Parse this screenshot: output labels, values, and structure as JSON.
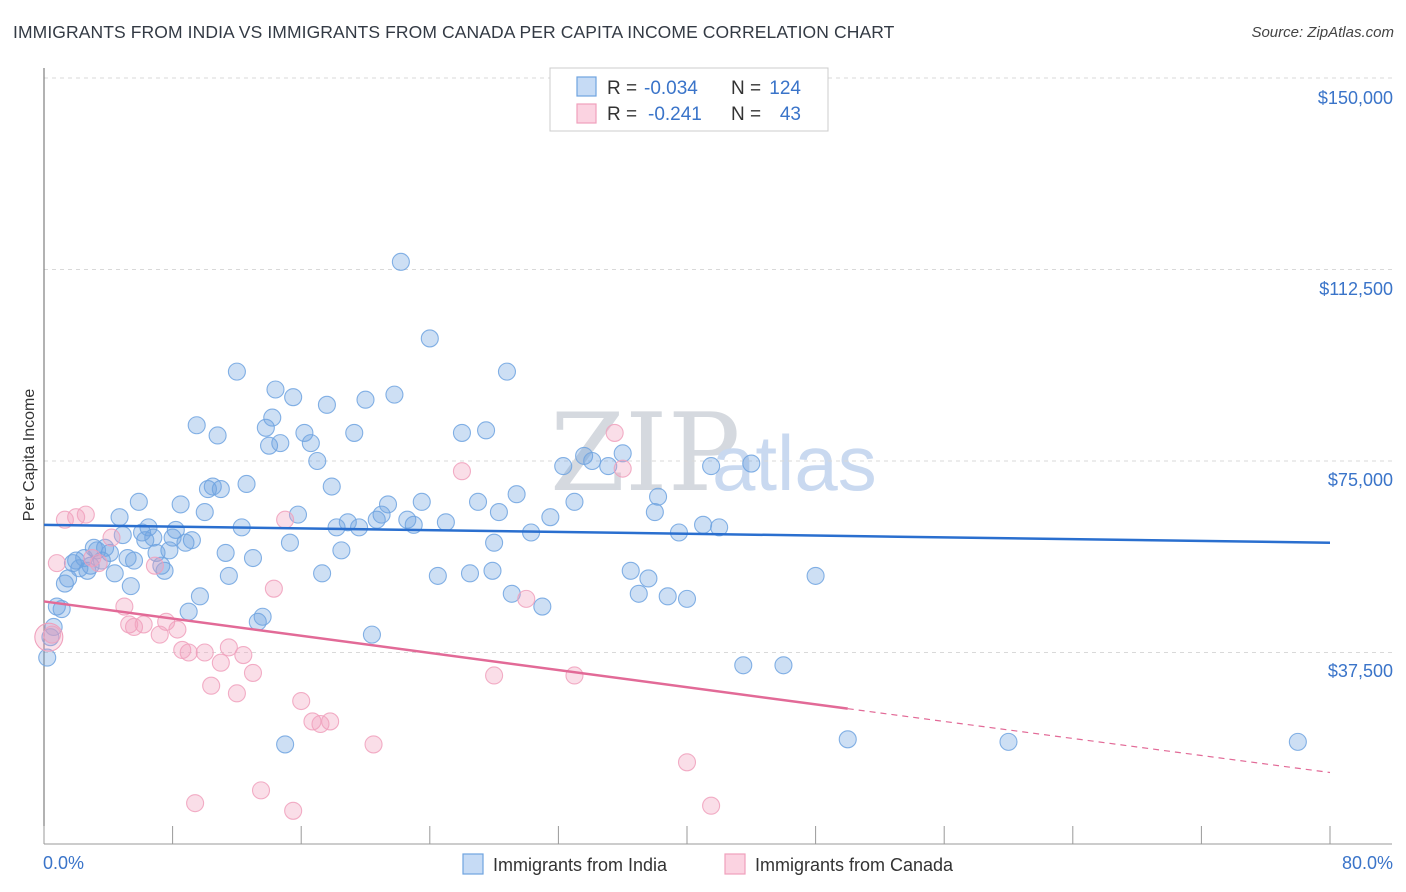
{
  "title": "IMMIGRANTS FROM INDIA VS IMMIGRANTS FROM CANADA PER CAPITA INCOME CORRELATION CHART",
  "source": "Source: ZipAtlas.com",
  "watermark": {
    "part1": "ZIP",
    "part2": "atlas"
  },
  "stats": {
    "india": {
      "r_label": "R =",
      "r_value": "-0.034",
      "n_label": "N =",
      "n_value": "124"
    },
    "canada": {
      "r_label": "R =",
      "r_value": "-0.241",
      "n_label": "N =",
      "n_value": "43"
    }
  },
  "colors": {
    "india": "#6fa3e0",
    "india_line": "#2a6fcf",
    "canada": "#f0a0bc",
    "canada_line": "#e26a97",
    "grid": "#d9d9d9",
    "tick_text": "#3a74c9"
  },
  "chart_data": {
    "type": "scatter",
    "title": "IMMIGRANTS FROM INDIA VS IMMIGRANTS FROM CANADA PER CAPITA INCOME CORRELATION CHART",
    "xlabel": "",
    "ylabel": "Per Capita Income",
    "xlim": [
      0,
      80
    ],
    "ylim": [
      0,
      150000
    ],
    "x_tick_labels": [
      "0.0%",
      "80.0%"
    ],
    "y_ticks": [
      37500,
      75000,
      112500,
      150000
    ],
    "y_tick_labels": [
      "$37,500",
      "$75,000",
      "$112,500",
      "$150,000"
    ],
    "grid": true,
    "legend": [
      "Immigrants from India",
      "Immigrants from Canada"
    ],
    "legend_position": "bottom-center",
    "series": [
      {
        "name": "Immigrants from India",
        "color": "#6fa3e0",
        "trend": {
          "x": [
            0,
            80
          ],
          "y": [
            62500,
            59000
          ]
        },
        "points": [
          [
            0.2,
            36500
          ],
          [
            0.4,
            40500
          ],
          [
            0.6,
            42500
          ],
          [
            0.8,
            46500
          ],
          [
            1.1,
            46000
          ],
          [
            1.3,
            51000
          ],
          [
            1.5,
            52000
          ],
          [
            1.8,
            55000
          ],
          [
            2.0,
            55500
          ],
          [
            2.2,
            54000
          ],
          [
            2.5,
            56000
          ],
          [
            2.7,
            53500
          ],
          [
            2.9,
            54500
          ],
          [
            3.1,
            58000
          ],
          [
            3.3,
            57500
          ],
          [
            3.6,
            55500
          ],
          [
            3.8,
            58000
          ],
          [
            4.1,
            57000
          ],
          [
            4.4,
            53000
          ],
          [
            4.7,
            64000
          ],
          [
            4.9,
            60500
          ],
          [
            5.2,
            56000
          ],
          [
            5.4,
            50500
          ],
          [
            5.6,
            55500
          ],
          [
            5.9,
            67000
          ],
          [
            6.1,
            61000
          ],
          [
            6.3,
            59500
          ],
          [
            6.5,
            62000
          ],
          [
            6.8,
            60000
          ],
          [
            7.0,
            57000
          ],
          [
            7.3,
            54500
          ],
          [
            7.5,
            53500
          ],
          [
            7.8,
            57500
          ],
          [
            8.0,
            60000
          ],
          [
            8.2,
            61500
          ],
          [
            8.5,
            66500
          ],
          [
            8.8,
            59000
          ],
          [
            9.0,
            45500
          ],
          [
            9.2,
            59500
          ],
          [
            9.5,
            82000
          ],
          [
            9.7,
            48500
          ],
          [
            10.0,
            65000
          ],
          [
            10.2,
            69500
          ],
          [
            10.5,
            70000
          ],
          [
            10.8,
            80000
          ],
          [
            11.0,
            69500
          ],
          [
            11.3,
            57000
          ],
          [
            11.5,
            52500
          ],
          [
            12.0,
            92500
          ],
          [
            12.3,
            62000
          ],
          [
            12.6,
            70500
          ],
          [
            13.0,
            56000
          ],
          [
            13.3,
            43500
          ],
          [
            13.6,
            44500
          ],
          [
            13.8,
            81500
          ],
          [
            14.0,
            78000
          ],
          [
            14.2,
            83500
          ],
          [
            14.4,
            89000
          ],
          [
            14.7,
            78500
          ],
          [
            15.0,
            19500
          ],
          [
            15.3,
            59000
          ],
          [
            15.5,
            87500
          ],
          [
            15.8,
            64500
          ],
          [
            16.2,
            80500
          ],
          [
            16.6,
            78500
          ],
          [
            17.0,
            75000
          ],
          [
            17.3,
            53000
          ],
          [
            17.6,
            86000
          ],
          [
            17.9,
            70000
          ],
          [
            18.2,
            62000
          ],
          [
            18.5,
            57500
          ],
          [
            18.9,
            63000
          ],
          [
            19.3,
            80500
          ],
          [
            19.6,
            62000
          ],
          [
            20.0,
            87000
          ],
          [
            20.4,
            41000
          ],
          [
            20.7,
            63500
          ],
          [
            21.0,
            64500
          ],
          [
            21.4,
            66500
          ],
          [
            21.8,
            88000
          ],
          [
            22.2,
            114000
          ],
          [
            22.6,
            63500
          ],
          [
            23.0,
            62500
          ],
          [
            23.5,
            67000
          ],
          [
            24.0,
            99000
          ],
          [
            24.5,
            52500
          ],
          [
            25.0,
            63000
          ],
          [
            26.0,
            80500
          ],
          [
            26.5,
            53000
          ],
          [
            27.0,
            67000
          ],
          [
            27.5,
            81000
          ],
          [
            27.9,
            53500
          ],
          [
            28.3,
            65000
          ],
          [
            28.8,
            92500
          ],
          [
            29.1,
            49000
          ],
          [
            29.4,
            68500
          ],
          [
            30.3,
            61000
          ],
          [
            31.0,
            46500
          ],
          [
            31.5,
            64000
          ],
          [
            32.3,
            74000
          ],
          [
            33.0,
            67000
          ],
          [
            33.6,
            76000
          ],
          [
            34.1,
            75000
          ],
          [
            35.1,
            74000
          ],
          [
            36.0,
            76500
          ],
          [
            37.0,
            49000
          ],
          [
            37.6,
            52000
          ],
          [
            38.0,
            65000
          ],
          [
            38.2,
            68000
          ],
          [
            38.8,
            48500
          ],
          [
            39.5,
            61000
          ],
          [
            40.0,
            48000
          ],
          [
            41.0,
            62500
          ],
          [
            41.5,
            74000
          ],
          [
            42.0,
            62000
          ],
          [
            43.5,
            35000
          ],
          [
            44.0,
            74500
          ],
          [
            46.0,
            35000
          ],
          [
            48.0,
            52500
          ],
          [
            50.0,
            20500
          ],
          [
            60.0,
            20000
          ],
          [
            78.0,
            20000
          ],
          [
            28.0,
            59000
          ],
          [
            36.5,
            53500
          ]
        ]
      },
      {
        "name": "Immigrants from Canada",
        "color": "#f0a0bc",
        "trend": {
          "x": [
            0,
            50,
            80
          ],
          "y": [
            47500,
            26500,
            14000
          ],
          "solid_until_x": 50
        },
        "points": [
          [
            0.5,
            41000
          ],
          [
            0.8,
            55000
          ],
          [
            1.3,
            63500
          ],
          [
            2.0,
            64000
          ],
          [
            2.6,
            64500
          ],
          [
            3.0,
            56000
          ],
          [
            3.4,
            55000
          ],
          [
            4.2,
            60000
          ],
          [
            5.0,
            46500
          ],
          [
            5.3,
            43000
          ],
          [
            5.6,
            42500
          ],
          [
            6.2,
            43000
          ],
          [
            6.9,
            54500
          ],
          [
            7.2,
            41000
          ],
          [
            7.6,
            43500
          ],
          [
            8.3,
            42000
          ],
          [
            8.6,
            38000
          ],
          [
            9.0,
            37500
          ],
          [
            9.4,
            8000
          ],
          [
            10.0,
            37500
          ],
          [
            10.4,
            31000
          ],
          [
            11.0,
            35500
          ],
          [
            11.5,
            38500
          ],
          [
            12.0,
            29500
          ],
          [
            12.4,
            37000
          ],
          [
            13.0,
            33500
          ],
          [
            13.5,
            10500
          ],
          [
            14.3,
            50000
          ],
          [
            15.0,
            63500
          ],
          [
            15.5,
            6500
          ],
          [
            16.0,
            28000
          ],
          [
            16.7,
            24000
          ],
          [
            17.2,
            23500
          ],
          [
            17.8,
            24000
          ],
          [
            20.5,
            19500
          ],
          [
            26.0,
            73000
          ],
          [
            28.0,
            33000
          ],
          [
            30.0,
            48000
          ],
          [
            33.0,
            33000
          ],
          [
            35.5,
            80500
          ],
          [
            36.0,
            73500
          ],
          [
            40.0,
            16000
          ],
          [
            41.5,
            7500
          ]
        ]
      }
    ]
  }
}
